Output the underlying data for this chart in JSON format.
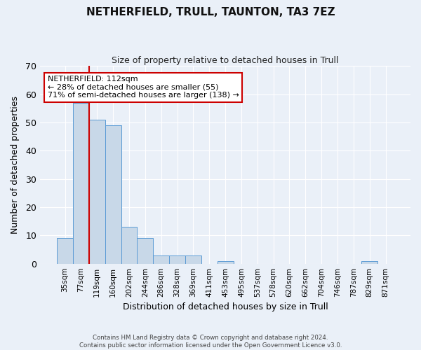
{
  "title": "NETHERFIELD, TRULL, TAUNTON, TA3 7EZ",
  "subtitle": "Size of property relative to detached houses in Trull",
  "xlabel": "Distribution of detached houses by size in Trull",
  "ylabel": "Number of detached properties",
  "bar_labels": [
    "35sqm",
    "77sqm",
    "119sqm",
    "160sqm",
    "202sqm",
    "244sqm",
    "286sqm",
    "328sqm",
    "369sqm",
    "411sqm",
    "453sqm",
    "495sqm",
    "537sqm",
    "578sqm",
    "620sqm",
    "662sqm",
    "704sqm",
    "746sqm",
    "787sqm",
    "829sqm",
    "871sqm"
  ],
  "bar_values": [
    9,
    57,
    51,
    49,
    13,
    9,
    3,
    3,
    3,
    0,
    1,
    0,
    0,
    0,
    0,
    0,
    0,
    0,
    0,
    1,
    0
  ],
  "bar_color": "#c8d8e8",
  "bar_edgecolor": "#5b9bd5",
  "vline_x": 1.5,
  "vline_color": "#cc0000",
  "ylim": [
    0,
    70
  ],
  "yticks": [
    0,
    10,
    20,
    30,
    40,
    50,
    60,
    70
  ],
  "annotation_title": "NETHERFIELD: 112sqm",
  "annotation_line1": "← 28% of detached houses are smaller (55)",
  "annotation_line2": "71% of semi-detached houses are larger (138) →",
  "annotation_box_color": "#cc0000",
  "bg_color": "#eaf0f8",
  "footer_line1": "Contains HM Land Registry data © Crown copyright and database right 2024.",
  "footer_line2": "Contains public sector information licensed under the Open Government Licence v3.0."
}
